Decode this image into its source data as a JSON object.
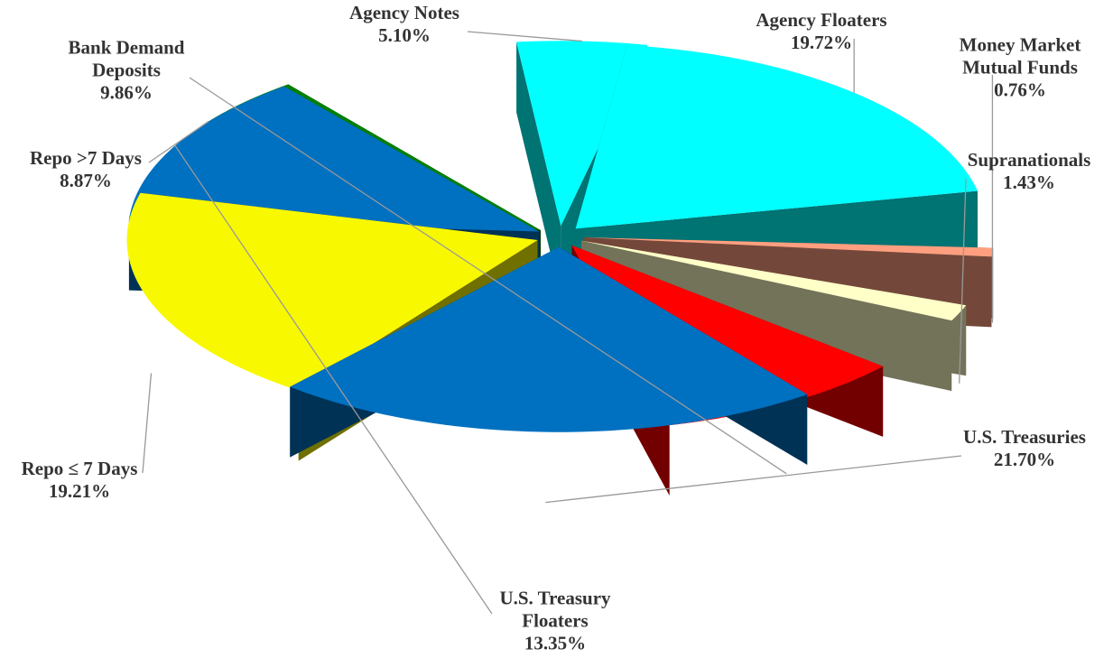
{
  "chart_data": {
    "type": "pie",
    "categories": [
      "Agency Floaters",
      "Money Market Mutual Funds",
      "Supranationals",
      "U.S. Treasuries",
      "U.S. Treasury Floaters",
      "Repo ≤ 7 Days",
      "Repo >7 Days",
      "Bank Demand Deposits",
      "Agency Notes"
    ],
    "values": [
      19.72,
      0.76,
      1.43,
      21.7,
      13.35,
      19.21,
      8.87,
      9.86,
      5.1
    ],
    "value_labels": [
      "19.72%",
      "0.76%",
      "1.43%",
      "21.70%",
      "13.35%",
      "19.21%",
      "8.87%",
      "9.86%",
      "5.10%"
    ],
    "colors": [
      "#00ffff",
      "#ff9f80",
      "#ffffc8",
      "#0070c0",
      "#0070c0",
      "#f8f800",
      "#008000",
      "#ff0000",
      "#00ffff"
    ]
  }
}
